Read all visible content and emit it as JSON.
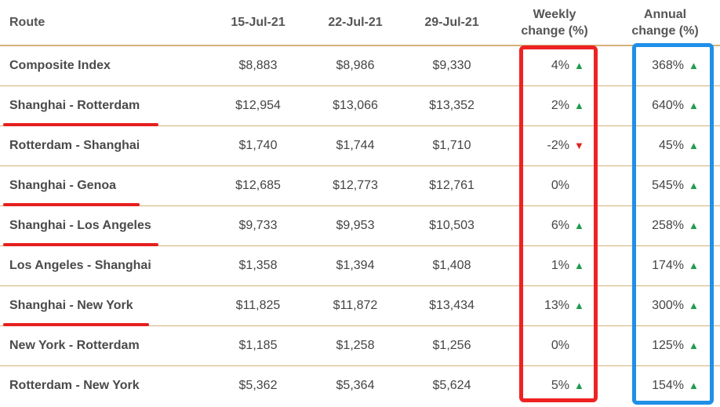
{
  "header": {
    "route": "Route",
    "date1": "15-Jul-21",
    "date2": "22-Jul-21",
    "date3": "29-Jul-21",
    "weekly_line1": "Weekly",
    "weekly_line2": "change (%)",
    "annual_line1": "Annual",
    "annual_line2": "change (%)"
  },
  "rows": [
    {
      "route": "Composite Index",
      "d1": "$8,883",
      "d2": "$8,986",
      "d3": "$9,330",
      "weekly": "4%",
      "weekly_dir": "up",
      "annual": "368%",
      "annual_dir": "up",
      "underlined": false
    },
    {
      "route": "Shanghai - Rotterdam",
      "d1": "$12,954",
      "d2": "$13,066",
      "d3": "$13,352",
      "weekly": "2%",
      "weekly_dir": "up",
      "annual": "640%",
      "annual_dir": "up",
      "underlined": true
    },
    {
      "route": "Rotterdam - Shanghai",
      "d1": "$1,740",
      "d2": "$1,744",
      "d3": "$1,710",
      "weekly": "-2%",
      "weekly_dir": "down",
      "annual": "45%",
      "annual_dir": "up",
      "underlined": false
    },
    {
      "route": "Shanghai - Genoa",
      "d1": "$12,685",
      "d2": "$12,773",
      "d3": "$12,761",
      "weekly": "0%",
      "weekly_dir": "none",
      "annual": "545%",
      "annual_dir": "up",
      "underlined": true
    },
    {
      "route": "Shanghai - Los Angeles",
      "d1": "$9,733",
      "d2": "$9,953",
      "d3": "$10,503",
      "weekly": "6%",
      "weekly_dir": "up",
      "annual": "258%",
      "annual_dir": "up",
      "underlined": true
    },
    {
      "route": "Los Angeles - Shanghai",
      "d1": "$1,358",
      "d2": "$1,394",
      "d3": "$1,408",
      "weekly": "1%",
      "weekly_dir": "up",
      "annual": "174%",
      "annual_dir": "up",
      "underlined": false
    },
    {
      "route": "Shanghai - New York",
      "d1": "$11,825",
      "d2": "$11,872",
      "d3": "$13,434",
      "weekly": "13%",
      "weekly_dir": "up",
      "annual": "300%",
      "annual_dir": "up",
      "underlined": true
    },
    {
      "route": "New York - Rotterdam",
      "d1": "$1,185",
      "d2": "$1,258",
      "d3": "$1,256",
      "weekly": "0%",
      "weekly_dir": "none",
      "annual": "125%",
      "annual_dir": "up",
      "underlined": false
    },
    {
      "route": "Rotterdam - New York",
      "d1": "$5,362",
      "d2": "$5,364",
      "d3": "$5,624",
      "weekly": "5%",
      "weekly_dir": "up",
      "annual": "154%",
      "annual_dir": "up",
      "underlined": false
    }
  ],
  "colors": {
    "up_arrow": "#1f9c4a",
    "down_arrow": "#e0241c",
    "rule_line": "#d4b07a",
    "highlight_weekly": "#ee2222",
    "highlight_annual": "#1f8fe8",
    "underline": "#e51f1f"
  },
  "icons": {
    "up": "triangle-up-icon",
    "down": "triangle-down-icon"
  }
}
